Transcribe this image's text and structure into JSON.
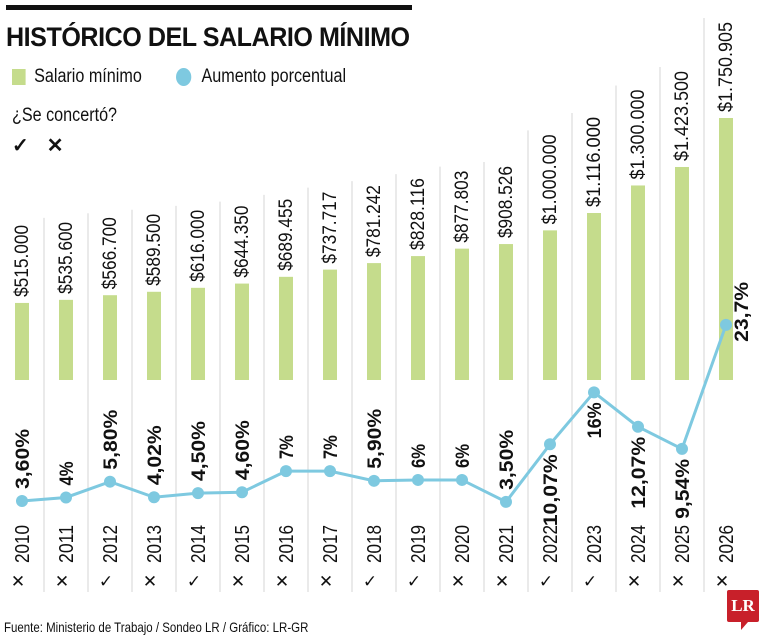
{
  "chart_data": {
    "type": "bar+line",
    "title": "HISTÓRICO DEL SALARIO MÍNIMO",
    "legend": [
      "Salario mínimo",
      "Aumento porcentual"
    ],
    "legend_placement": "top-left",
    "categories": [
      "2010",
      "2011",
      "2012",
      "2013",
      "2014",
      "2015",
      "2016",
      "2017",
      "2018",
      "2019",
      "2020",
      "2021",
      "2022",
      "2023",
      "2024",
      "2025",
      "2026"
    ],
    "series": [
      {
        "name": "Salario mínimo",
        "kind": "bar",
        "color": "#c5dc8c",
        "values": [
          515000,
          535600,
          566700,
          589500,
          616000,
          644350,
          689455,
          737717,
          781242,
          828116,
          877803,
          908526,
          1000000,
          1116000,
          1300000,
          1423500,
          1750905
        ],
        "labels": [
          "$515.000",
          "$535.600",
          "$566.700",
          "$589.500",
          "$616.000",
          "$644.350",
          "$689.455",
          "$737.717",
          "$781.242",
          "$828.116",
          "$877.803",
          "$908.526",
          "$1.000.000",
          "$1.116.000",
          "$1.300.000",
          "$1.423.500",
          "$1.750.905"
        ]
      },
      {
        "name": "Aumento porcentual",
        "kind": "line",
        "color": "#7ec9e0",
        "values": [
          3.6,
          4,
          5.8,
          4.02,
          4.5,
          4.6,
          7,
          7,
          5.9,
          6,
          6,
          3.5,
          10.07,
          16,
          12.07,
          9.54,
          23.7
        ],
        "labels": [
          "3,60%",
          "4%",
          "5,80%",
          "4,02%",
          "4,50%",
          "4,60%",
          "7%",
          "7%",
          "5,90%",
          "6%",
          "6%",
          "3,50%",
          "10,07%",
          "16%",
          "12,07%",
          "9,54%",
          "23,7%"
        ]
      }
    ],
    "concerted": [
      false,
      false,
      true,
      false,
      true,
      false,
      false,
      false,
      true,
      true,
      false,
      false,
      true,
      true,
      false,
      false,
      false
    ],
    "grid": false
  },
  "legend_concert": {
    "question": "¿Se concertó?",
    "yes": "✓",
    "no": "✕"
  },
  "source": "Fuente: Ministerio de Trabajo / Sondeo LR / Gráfico: LR-GR",
  "logo": "LR"
}
